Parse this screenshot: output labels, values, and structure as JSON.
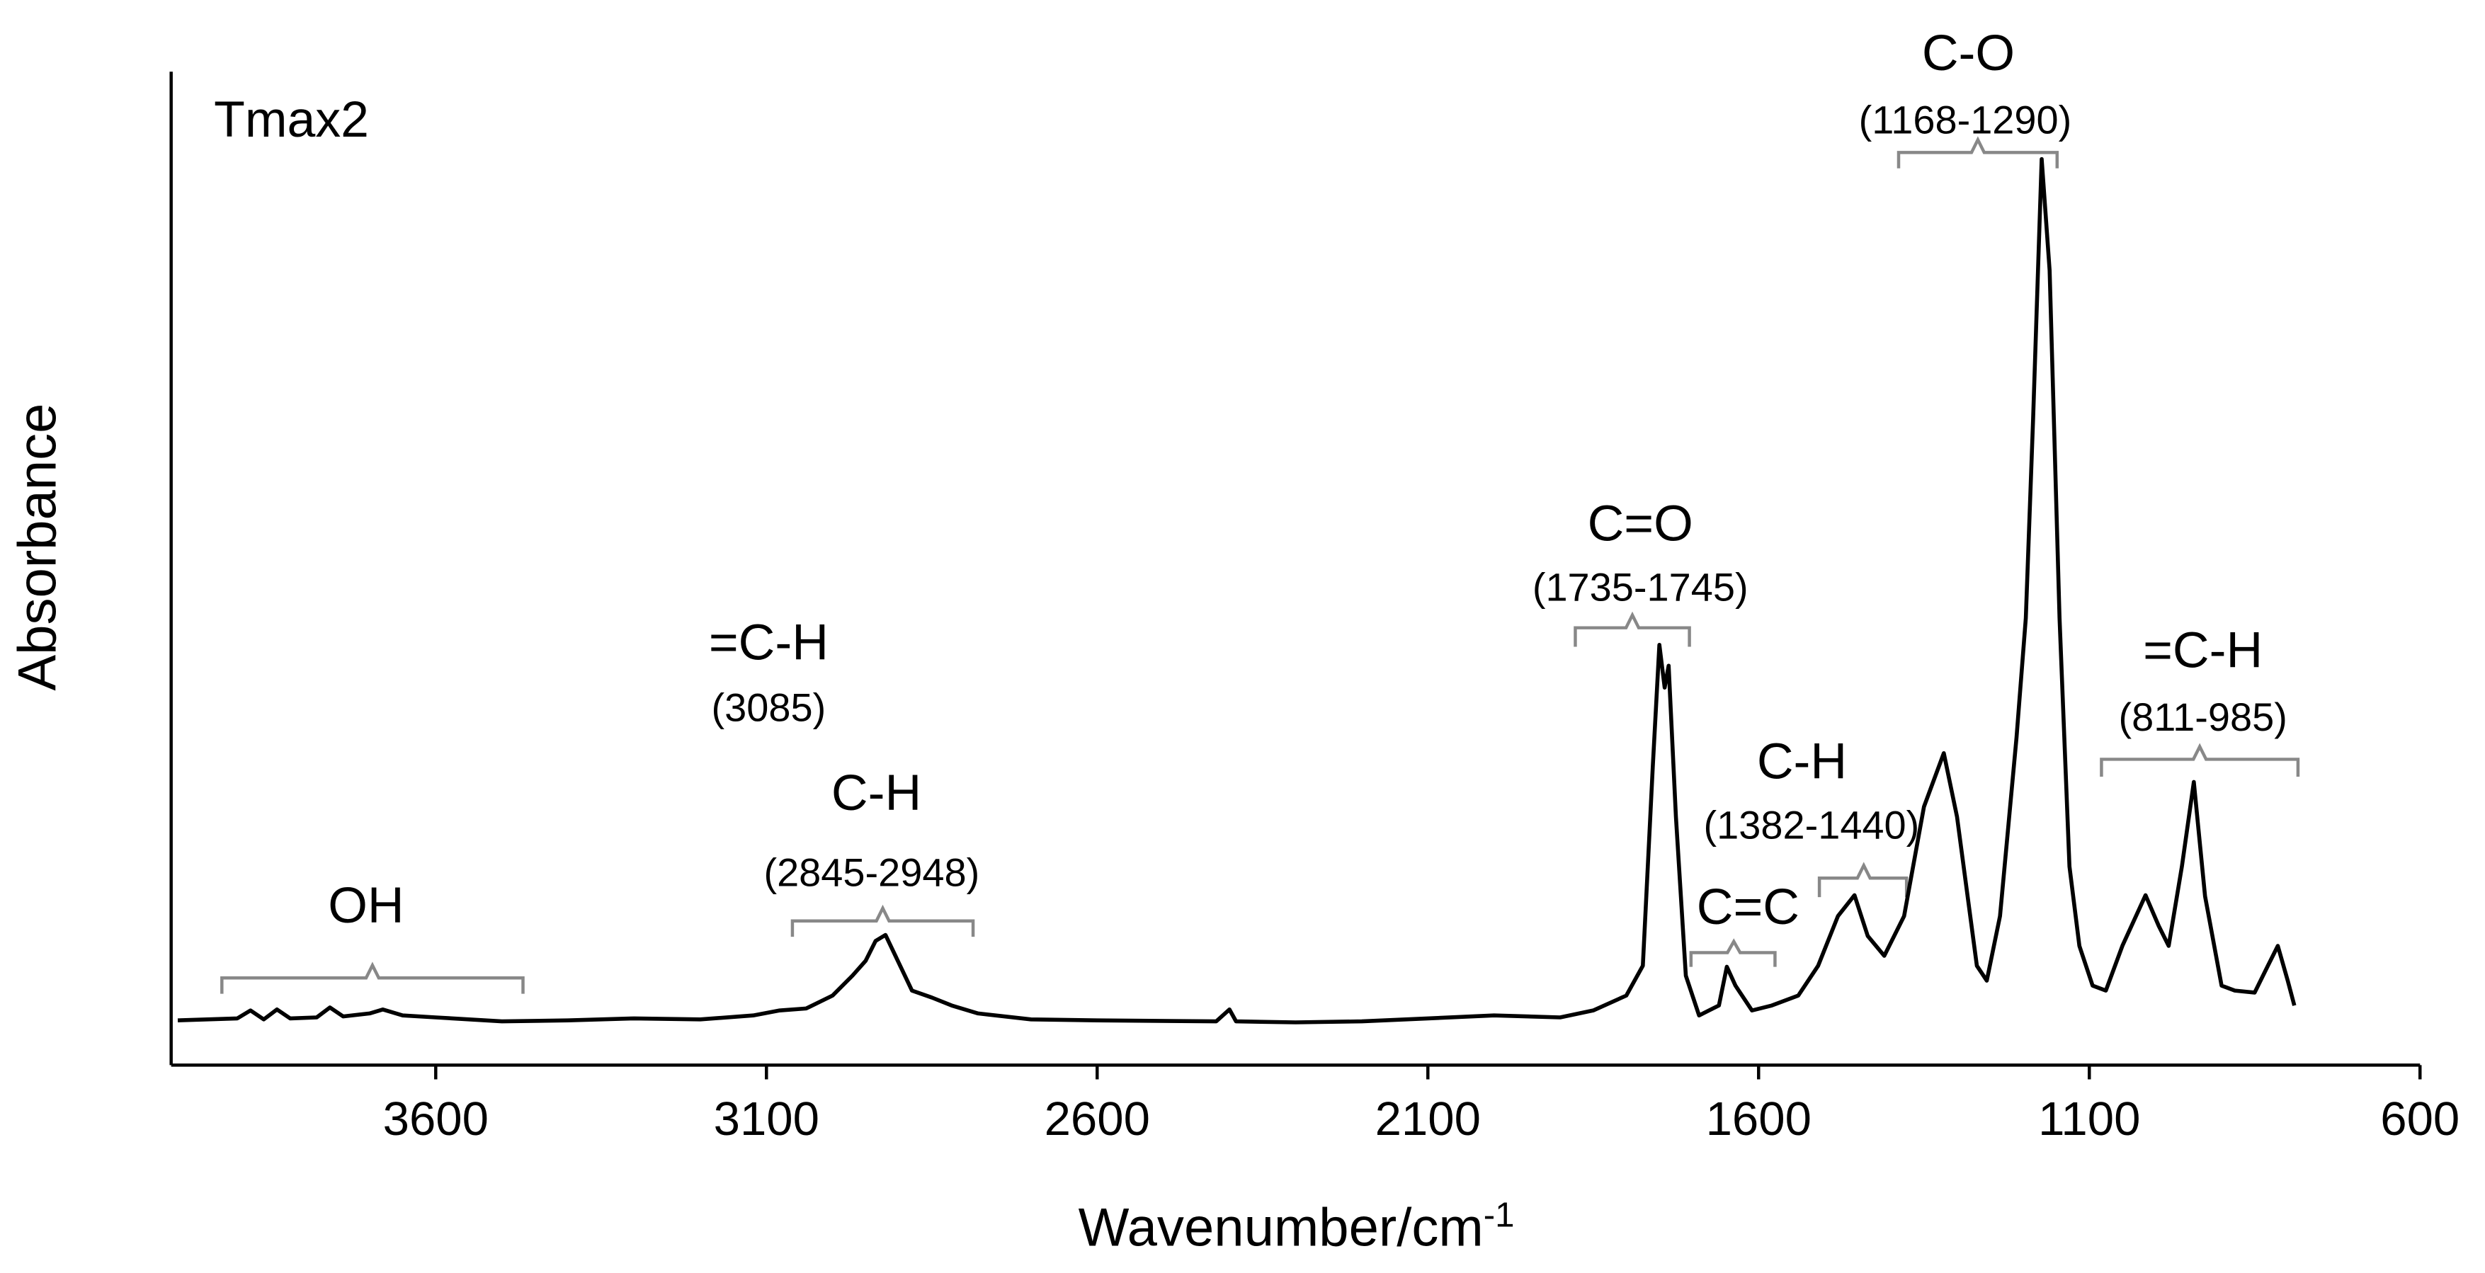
{
  "chart_data": {
    "type": "line",
    "x_label": "Wavenumber/cm",
    "x_label_sup": "-1",
    "y_label": "Absorbance",
    "xlim": [
      4000,
      600
    ],
    "xticks": [
      3600,
      3100,
      2600,
      2100,
      1600,
      1100,
      600
    ],
    "ylim": [
      0,
      1
    ],
    "grid": false,
    "x": [
      3990,
      3900,
      3880,
      3860,
      3840,
      3820,
      3780,
      3760,
      3740,
      3700,
      3680,
      3650,
      3600,
      3500,
      3400,
      3300,
      3200,
      3120,
      3080,
      3040,
      3000,
      2970,
      2950,
      2935,
      2920,
      2905,
      2880,
      2850,
      2820,
      2780,
      2700,
      2600,
      2420,
      2400,
      2390,
      2300,
      2200,
      2100,
      2000,
      1900,
      1850,
      1800,
      1775,
      1760,
      1750,
      1742,
      1736,
      1725,
      1710,
      1690,
      1660,
      1648,
      1635,
      1610,
      1580,
      1540,
      1510,
      1480,
      1455,
      1435,
      1410,
      1380,
      1350,
      1320,
      1300,
      1270,
      1255,
      1235,
      1210,
      1196,
      1185,
      1172,
      1160,
      1145,
      1130,
      1115,
      1095,
      1075,
      1050,
      1015,
      995,
      980,
      960,
      942,
      925,
      900,
      880,
      850,
      830,
      815,
      800,
      790
    ],
    "series": [
      {
        "name": "Tmax2",
        "color": "#000000",
        "values": [
          0.045,
          0.047,
          0.055,
          0.046,
          0.056,
          0.047,
          0.048,
          0.058,
          0.049,
          0.052,
          0.056,
          0.05,
          0.048,
          0.044,
          0.045,
          0.047,
          0.046,
          0.05,
          0.055,
          0.057,
          0.07,
          0.09,
          0.105,
          0.125,
          0.131,
          0.11,
          0.075,
          0.068,
          0.06,
          0.052,
          0.046,
          0.045,
          0.044,
          0.056,
          0.044,
          0.043,
          0.044,
          0.047,
          0.05,
          0.048,
          0.055,
          0.07,
          0.1,
          0.3,
          0.423,
          0.38,
          0.402,
          0.25,
          0.09,
          0.05,
          0.06,
          0.099,
          0.08,
          0.055,
          0.06,
          0.07,
          0.1,
          0.15,
          0.171,
          0.13,
          0.11,
          0.15,
          0.26,
          0.314,
          0.25,
          0.1,
          0.085,
          0.15,
          0.33,
          0.45,
          0.65,
          0.912,
          0.8,
          0.45,
          0.2,
          0.12,
          0.08,
          0.075,
          0.12,
          0.171,
          0.14,
          0.12,
          0.2,
          0.285,
          0.17,
          0.08,
          0.075,
          0.073,
          0.1,
          0.12,
          0.085,
          0.06
        ]
      }
    ],
    "annotations": [
      "OH",
      "=C-H",
      "(3085)",
      "C-H",
      "(2845-2948)",
      "C=O",
      "(1735-1745)",
      "C=C",
      "C-H",
      "(1382-1440)",
      "C-O",
      "(1168-1290)",
      "=C-H",
      "(811-985)"
    ]
  }
}
